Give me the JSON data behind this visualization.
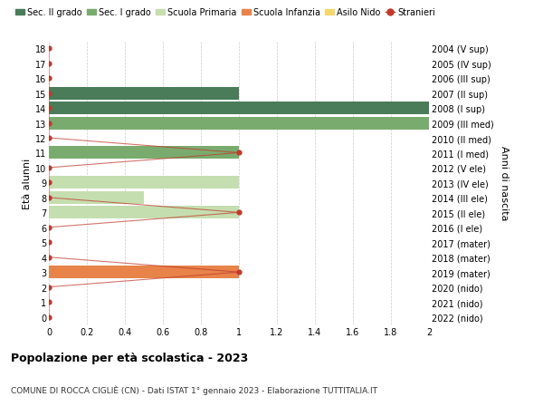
{
  "title": "Popolazione per età scolastica - 2023",
  "subtitle": "COMUNE DI ROCCA CIGLIÈ (CN) - Dati ISTAT 1° gennaio 2023 - Elaborazione TUTTITALIA.IT",
  "ylabel": "Età alunni",
  "right_ylabel": "Anni di nascita",
  "ages": [
    0,
    1,
    2,
    3,
    4,
    5,
    6,
    7,
    8,
    9,
    10,
    11,
    12,
    13,
    14,
    15,
    16,
    17,
    18
  ],
  "right_labels": [
    "2022 (nido)",
    "2021 (nido)",
    "2020 (nido)",
    "2019 (mater)",
    "2018 (mater)",
    "2017 (mater)",
    "2016 (I ele)",
    "2015 (II ele)",
    "2014 (III ele)",
    "2013 (IV ele)",
    "2012 (V ele)",
    "2011 (I med)",
    "2010 (II med)",
    "2009 (III med)",
    "2008 (I sup)",
    "2007 (II sup)",
    "2006 (III sup)",
    "2005 (IV sup)",
    "2004 (V sup)"
  ],
  "xlim": [
    0,
    2.0
  ],
  "xticks": [
    0,
    0.2,
    0.4,
    0.6,
    0.8,
    1.0,
    1.2,
    1.4,
    1.6,
    1.8,
    2.0
  ],
  "bar_height": 0.85,
  "colors": {
    "sec_II": "#4a7c59",
    "sec_I": "#7aab6e",
    "primaria": "#c5deb0",
    "infanzia": "#e8834a",
    "nido": "#f5d76e",
    "stranieri": "#c0392b"
  },
  "legend_labels": [
    "Sec. II grado",
    "Sec. I grado",
    "Scuola Primaria",
    "Scuola Infanzia",
    "Asilo Nido",
    "Stranieri"
  ],
  "legend_colors": [
    "#4a7c59",
    "#7aab6e",
    "#c5deb0",
    "#e8834a",
    "#f5d76e",
    "#c0392b"
  ],
  "bars": [
    {
      "age": 14,
      "value": 2.0,
      "color": "sec_II"
    },
    {
      "age": 15,
      "value": 1.0,
      "color": "sec_II"
    },
    {
      "age": 13,
      "value": 2.0,
      "color": "sec_I"
    },
    {
      "age": 11,
      "value": 1.0,
      "color": "sec_I"
    },
    {
      "age": 9,
      "value": 1.0,
      "color": "primaria"
    },
    {
      "age": 8,
      "value": 0.5,
      "color": "primaria"
    },
    {
      "age": 7,
      "value": 1.0,
      "color": "primaria"
    },
    {
      "age": 3,
      "value": 1.0,
      "color": "infanzia"
    }
  ],
  "stranieri_points": [
    {
      "age": 18,
      "val": 0.0
    },
    {
      "age": 17,
      "val": 0.0
    },
    {
      "age": 16,
      "val": 0.0
    },
    {
      "age": 15,
      "val": 0.0
    },
    {
      "age": 14,
      "val": 0.0
    },
    {
      "age": 13,
      "val": 0.0
    },
    {
      "age": 12,
      "val": 0.0
    },
    {
      "age": 11,
      "val": 1.0
    },
    {
      "age": 10,
      "val": 0.0
    },
    {
      "age": 9,
      "val": 0.0
    },
    {
      "age": 8,
      "val": 0.0
    },
    {
      "age": 7,
      "val": 1.0
    },
    {
      "age": 6,
      "val": 0.0
    },
    {
      "age": 5,
      "val": 0.0
    },
    {
      "age": 4,
      "val": 0.0
    },
    {
      "age": 3,
      "val": 1.0
    },
    {
      "age": 2,
      "val": 0.0
    },
    {
      "age": 1,
      "val": 0.0
    },
    {
      "age": 0,
      "val": 0.0
    }
  ],
  "bg_color": "#ffffff",
  "grid_color": "#cccccc"
}
